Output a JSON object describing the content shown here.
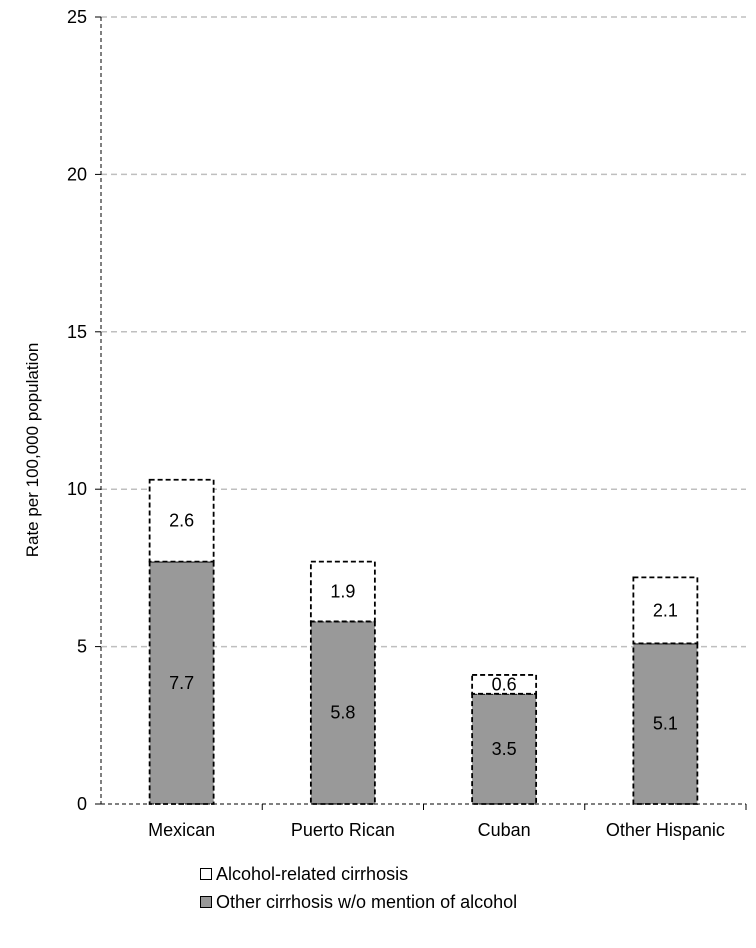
{
  "chart_data": {
    "type": "bar",
    "stacked": true,
    "ylabel": "Rate per 100,000 population",
    "ylim": [
      0,
      25
    ],
    "yticks": [
      0,
      5,
      10,
      15,
      20,
      25
    ],
    "grid": true,
    "legend_position": "bottom",
    "categories": [
      "Mexican",
      "Puerto Rican",
      "Cuban",
      "Other Hispanic"
    ],
    "series": [
      {
        "name": "Other cirrhosis w/o mention of alcohol",
        "values": [
          7.7,
          5.8,
          3.5,
          5.1
        ],
        "color": "#999999"
      },
      {
        "name": "Alcohol-related cirrhosis",
        "values": [
          2.6,
          1.9,
          0.6,
          2.1
        ],
        "color": "#ffffff"
      }
    ],
    "data_labels": [
      [
        "7.7",
        "5.8",
        "3.5",
        "5.1"
      ],
      [
        "2.6",
        "1.9",
        "0.6",
        "2.1"
      ]
    ]
  }
}
